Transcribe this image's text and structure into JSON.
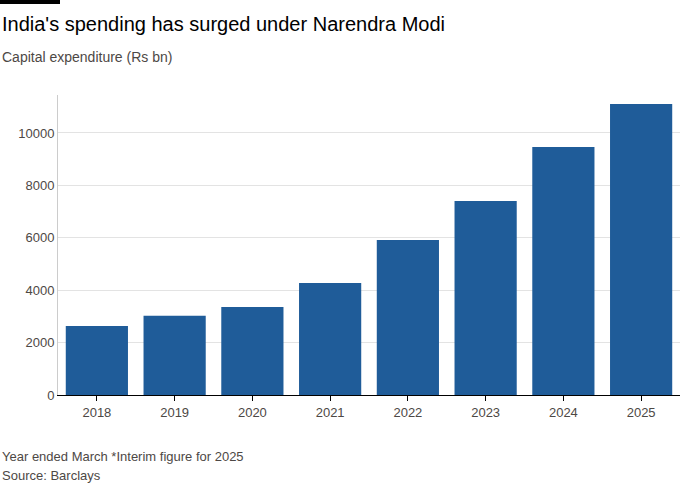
{
  "chart_data": {
    "type": "bar",
    "title": "India's spending has surged under Narendra Modi",
    "subtitle": "Capital expenditure (Rs bn)",
    "footnote": "Year ended March *Interim figure for 2025",
    "source": "Source: Barclays",
    "categories": [
      "2018",
      "2019",
      "2020",
      "2021",
      "2022",
      "2023",
      "2024",
      "2025"
    ],
    "values": [
      2630,
      3020,
      3360,
      4270,
      5920,
      7400,
      9470,
      11110
    ],
    "color": "#1f5c99",
    "ylim": [
      0,
      11450
    ],
    "yticks": [
      0,
      2000,
      4000,
      6000,
      8000,
      10000
    ],
    "grid": true
  }
}
